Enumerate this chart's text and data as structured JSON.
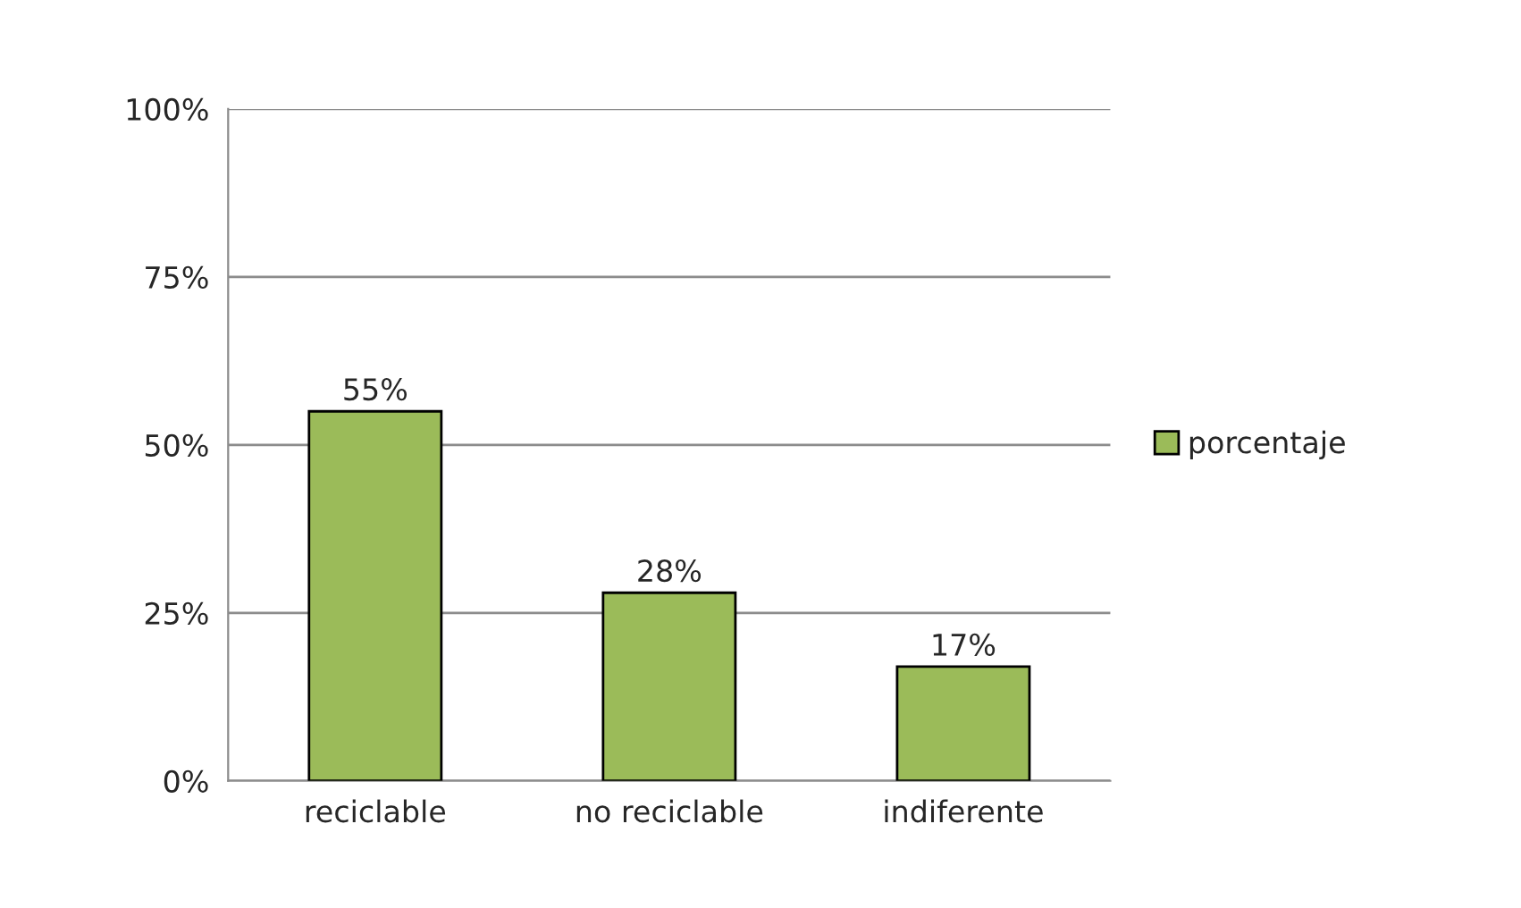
{
  "chart_data": {
    "type": "bar",
    "categories": [
      "reciclable",
      "no reciclable",
      "indiferente"
    ],
    "series": [
      {
        "name": "porcentaje",
        "color": "#9bbb59",
        "values": [
          55,
          28,
          17
        ],
        "value_labels": [
          "55%",
          "28%",
          "17%"
        ]
      }
    ],
    "ylim": [
      0,
      100
    ],
    "yticks": [
      {
        "value": 0,
        "label": "0%"
      },
      {
        "value": 25,
        "label": "25%"
      },
      {
        "value": 50,
        "label": "50%"
      },
      {
        "value": 75,
        "label": "75%"
      },
      {
        "value": 100,
        "label": "100%"
      }
    ],
    "grid": "y",
    "legend": "right"
  }
}
